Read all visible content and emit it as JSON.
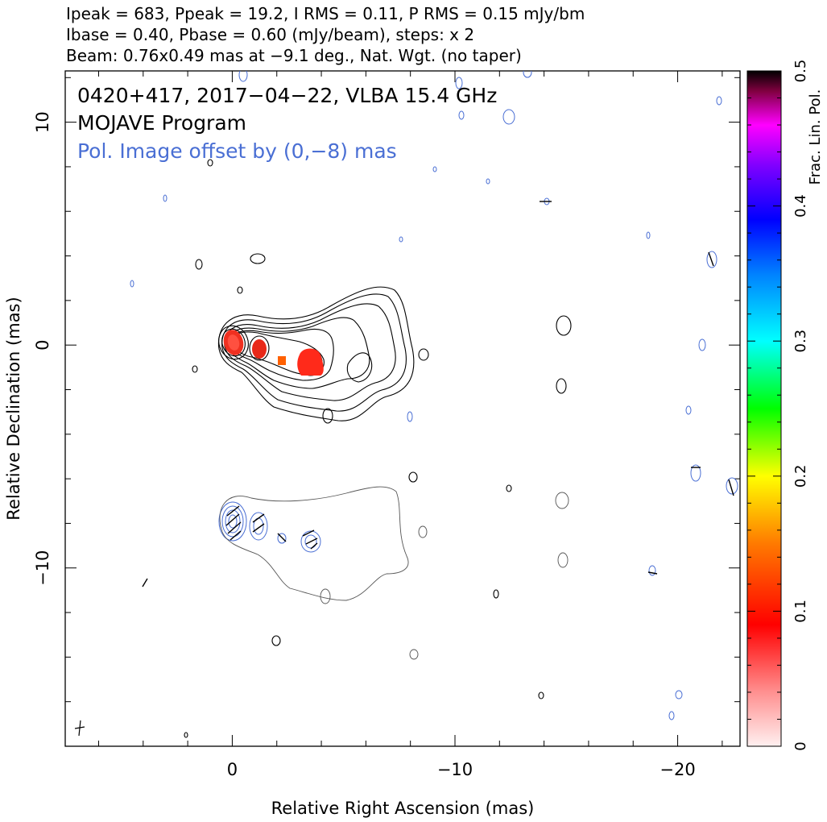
{
  "header": {
    "line1": "Ipeak = 683, Ppeak = 19.2, I RMS = 0.11, P RMS = 0.15 mJy/bm",
    "line2": "Ibase = 0.40, Pbase = 0.60 (mJy/beam), steps: x 2",
    "line3": "Beam: 0.76x0.49 mas at −9.1 deg., Nat. Wgt. (no taper)"
  },
  "annotations": {
    "source": "0420+417, 2017−04−22, VLBA 15.4 GHz",
    "program": "MOJAVE Program",
    "offset_note": "Pol. Image offset by (0,−8) mas",
    "offset_color": "#4a6fd4"
  },
  "chart_data": {
    "type": "contour",
    "xlabel": "Relative Right Ascension (mas)",
    "ylabel": "Relative Declination (mas)",
    "xlim": [
      7.5,
      -22.8
    ],
    "ylim": [
      -18,
      12.3
    ],
    "x_ticks": [
      {
        "value": 0,
        "label": "0"
      },
      {
        "value": -10,
        "label": "−10"
      },
      {
        "value": -20,
        "label": "−20"
      }
    ],
    "y_ticks": [
      {
        "value": 10,
        "label": "10"
      },
      {
        "value": 0,
        "label": "0"
      },
      {
        "value": -10,
        "label": "−10"
      }
    ],
    "colorbar": {
      "label": "Frac. Lin. Pol.",
      "range": [
        0,
        0.5
      ],
      "ticks": [
        {
          "value": 0,
          "label": "0"
        },
        {
          "value": 0.1,
          "label": "0.1"
        },
        {
          "value": 0.2,
          "label": "0.2"
        },
        {
          "value": 0.3,
          "label": "0.3"
        },
        {
          "value": 0.4,
          "label": "0.4"
        },
        {
          "value": 0.5,
          "label": "0.5"
        }
      ]
    },
    "stokes_i_peak_components": [
      {
        "x": 0.0,
        "y": 0.0
      },
      {
        "x": -1.2,
        "y": -0.2
      },
      {
        "x": -3.6,
        "y": -0.9
      }
    ],
    "fractional_pol_patches": [
      {
        "x": 0.0,
        "y": 0.0,
        "frac_pol": 0.06
      },
      {
        "x": -1.2,
        "y": -0.2,
        "frac_pol": 0.07
      },
      {
        "x": -2.3,
        "y": -0.8,
        "frac_pol": 0.09
      },
      {
        "x": -3.6,
        "y": -0.9,
        "frac_pol": 0.05
      }
    ],
    "beam": {
      "major_mas": 0.76,
      "minor_mas": 0.49,
      "pa_deg": -9.1
    }
  }
}
